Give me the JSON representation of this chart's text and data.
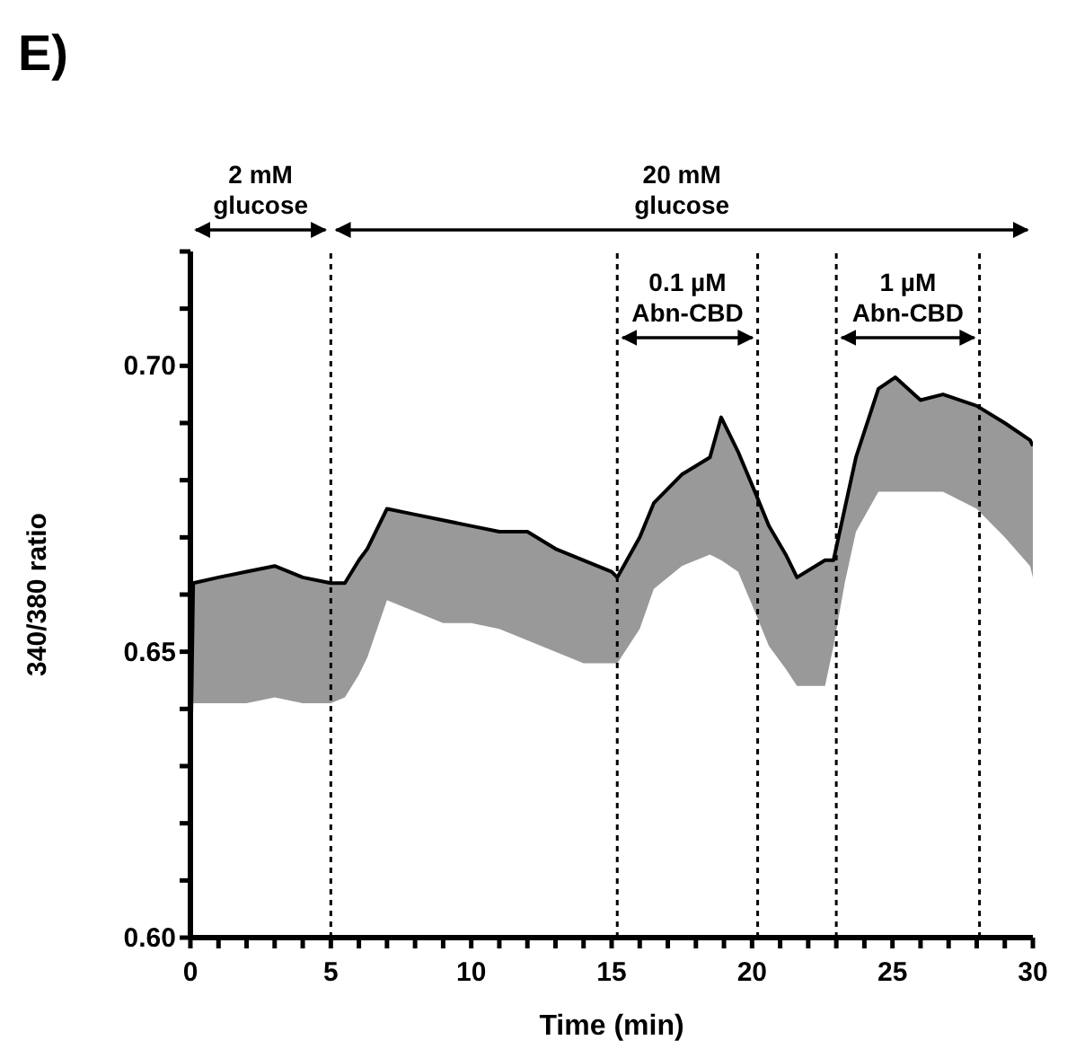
{
  "chart_data": {
    "type": "line",
    "title": "E)",
    "xlabel": "Time (min)",
    "ylabel": "340/380 ratio",
    "x": [
      0,
      0.1,
      1,
      2,
      3,
      4,
      5,
      5.5,
      6,
      6.3,
      7,
      8,
      9,
      10,
      11,
      12,
      13,
      14,
      15,
      15.2,
      16,
      16.5,
      17.5,
      18.5,
      18.9,
      19.5,
      20.1,
      20.6,
      21.2,
      21.6,
      22.6,
      22.9,
      23.3,
      23.7,
      24.5,
      25.1,
      26,
      26.8,
      28,
      29,
      29.9,
      30
    ],
    "series": [
      {
        "color": "#000000",
        "lower": [
          0.628,
          0.641,
          0.641,
          0.641,
          0.642,
          0.641,
          0.641,
          0.642,
          0.646,
          0.649,
          0.659,
          0.657,
          0.655,
          0.655,
          0.654,
          0.652,
          0.65,
          0.648,
          0.648,
          0.648,
          0.654,
          0.661,
          0.665,
          0.667,
          0.666,
          0.664,
          0.657,
          0.651,
          0.647,
          0.644,
          0.644,
          0.651,
          0.662,
          0.671,
          0.678,
          0.678,
          0.678,
          0.678,
          0.675,
          0.67,
          0.665,
          0.663
        ],
        "upper": [
          0.628,
          0.662,
          0.663,
          0.664,
          0.665,
          0.663,
          0.662,
          0.662,
          0.666,
          0.668,
          0.675,
          0.674,
          0.673,
          0.672,
          0.671,
          0.671,
          0.668,
          0.666,
          0.664,
          0.663,
          0.67,
          0.676,
          0.681,
          0.684,
          0.691,
          0.685,
          0.678,
          0.672,
          0.667,
          0.663,
          0.666,
          0.666,
          0.675,
          0.684,
          0.696,
          0.698,
          0.694,
          0.695,
          0.693,
          0.69,
          0.687,
          0.686
        ],
        "values": [
          0.628,
          0.662,
          0.663,
          0.664,
          0.665,
          0.663,
          0.662,
          0.662,
          0.666,
          0.668,
          0.675,
          0.674,
          0.673,
          0.672,
          0.671,
          0.671,
          0.668,
          0.666,
          0.664,
          0.663,
          0.67,
          0.676,
          0.681,
          0.684,
          0.691,
          0.685,
          0.678,
          0.672,
          0.667,
          0.663,
          0.666,
          0.666,
          0.675,
          0.684,
          0.696,
          0.698,
          0.694,
          0.695,
          0.693,
          0.69,
          0.687,
          0.686
        ]
      }
    ],
    "xlim": [
      0,
      30
    ],
    "xticks": [
      0,
      {
        "value": 1,
        "label": null
      },
      {
        "value": 2,
        "label": null
      },
      {
        "value": 3,
        "label": null
      },
      {
        "value": 4,
        "label": null
      },
      5,
      {
        "value": 6,
        "label": null
      },
      {
        "value": 7,
        "label": null
      },
      {
        "value": 8,
        "label": null
      },
      {
        "value": 9,
        "label": null
      },
      10,
      {
        "value": 11,
        "label": null
      },
      {
        "value": 12,
        "label": null
      },
      {
        "value": 13,
        "label": null
      },
      {
        "value": 14,
        "label": null
      },
      15,
      {
        "value": 16,
        "label": null
      },
      {
        "value": 17,
        "label": null
      },
      {
        "value": 18,
        "label": null
      },
      {
        "value": 19,
        "label": null
      },
      20,
      {
        "value": 21,
        "label": null
      },
      {
        "value": 22,
        "label": null
      },
      {
        "value": 23,
        "label": null
      },
      {
        "value": 24,
        "label": null
      },
      25,
      {
        "value": 26,
        "label": null
      },
      {
        "value": 27,
        "label": null
      },
      {
        "value": 28,
        "label": null
      },
      {
        "value": 29,
        "label": null
      },
      30
    ],
    "ylim": [
      0.6,
      0.72
    ],
    "yticks": [
      {
        "value": 0.6,
        "label": "0.60"
      },
      {
        "value": 0.61,
        "label": null
      },
      {
        "value": 0.62,
        "label": null
      },
      {
        "value": 0.63,
        "label": null
      },
      {
        "value": 0.64,
        "label": null
      },
      {
        "value": 0.65,
        "label": "0.65"
      },
      {
        "value": 0.66,
        "label": null
      },
      {
        "value": 0.67,
        "label": null
      },
      {
        "value": 0.68,
        "label": null
      },
      {
        "value": 0.69,
        "label": null
      },
      {
        "value": 0.7,
        "label": "0.70"
      },
      {
        "value": 0.71,
        "label": null
      },
      {
        "value": 0.72,
        "label": null
      }
    ],
    "ref_lines": [
      {
        "axis": "x",
        "value": 5,
        "line_style": "dotted",
        "color": "#000000"
      },
      {
        "axis": "x",
        "value": 15.2,
        "line_style": "dotted",
        "color": "#000000"
      },
      {
        "axis": "x",
        "value": 20.2,
        "line_style": "dotted",
        "color": "#000000"
      },
      {
        "axis": "x",
        "value": 23,
        "line_style": "dotted",
        "color": "#000000"
      },
      {
        "axis": "x",
        "value": 28.1,
        "line_style": "dotted",
        "color": "#000000"
      }
    ],
    "annotations": [
      "2 mM glucose",
      "20 mM glucose",
      "0.1 µM Abn-CBD",
      "1 µM Abn-CBD"
    ],
    "legend": false,
    "grid": false,
    "marker": "none",
    "line_style": "solid"
  }
}
